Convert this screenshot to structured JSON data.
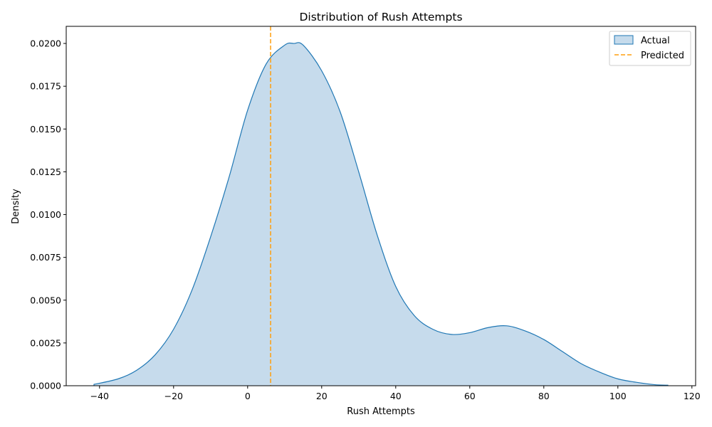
{
  "chart_data": {
    "type": "area",
    "title": "Distribution of Rush Attempts",
    "xlabel": "Rush Attempts",
    "ylabel": "Density",
    "xlim": [
      -49,
      121
    ],
    "ylim": [
      0,
      0.021
    ],
    "x_ticks": [
      -40,
      -20,
      0,
      20,
      40,
      60,
      80,
      100,
      120
    ],
    "x_tick_labels": [
      "−40",
      "−20",
      "0",
      "20",
      "40",
      "60",
      "80",
      "100",
      "120"
    ],
    "y_ticks": [
      0,
      0.0025,
      0.005,
      0.0075,
      0.01,
      0.0125,
      0.015,
      0.0175,
      0.02
    ],
    "y_tick_labels": [
      "0.0000",
      "0.0025",
      "0.0050",
      "0.0075",
      "0.0100",
      "0.0125",
      "0.0150",
      "0.0175",
      "0.0200"
    ],
    "grid": false,
    "legend_position": "top-right",
    "series": [
      {
        "name": "Actual",
        "kind": "kde",
        "color": "#1f77b4",
        "fill_color": "#c6dbec",
        "x": [
          -41.5,
          -35,
          -30,
          -25,
          -20,
          -15,
          -10,
          -5,
          0,
          5,
          10,
          12.5,
          15,
          20,
          25,
          30,
          35,
          40,
          45,
          50,
          55,
          60,
          65,
          70,
          75,
          80,
          85,
          90,
          95,
          100,
          105,
          110,
          113.5
        ],
        "y": [
          8e-05,
          0.0004,
          0.0009,
          0.0018,
          0.0033,
          0.0056,
          0.0087,
          0.0122,
          0.0161,
          0.0188,
          0.0199,
          0.02,
          0.0199,
          0.0184,
          0.016,
          0.0125,
          0.0088,
          0.0058,
          0.0041,
          0.0033,
          0.003,
          0.0031,
          0.0034,
          0.0035,
          0.0032,
          0.0027,
          0.002,
          0.0013,
          0.0008,
          0.0004,
          0.0002,
          6e-05,
          3e-05
        ]
      },
      {
        "name": "Predicted",
        "kind": "vline",
        "color": "#ff9f0e",
        "x": 6.2
      }
    ]
  }
}
